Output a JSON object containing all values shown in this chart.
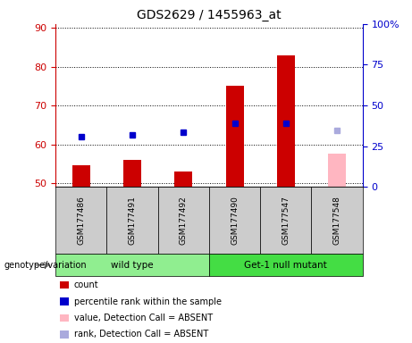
{
  "title": "GDS2629 / 1455963_at",
  "samples": [
    "GSM177486",
    "GSM177491",
    "GSM177492",
    "GSM177490",
    "GSM177547",
    "GSM177548"
  ],
  "count_values": [
    54.5,
    56.0,
    53.0,
    75.0,
    83.0,
    null
  ],
  "count_absent_values": [
    null,
    null,
    null,
    null,
    null,
    57.5
  ],
  "rank_values": [
    62.0,
    62.5,
    63.0,
    65.5,
    65.5,
    null
  ],
  "rank_absent_values": [
    null,
    null,
    null,
    null,
    null,
    63.5
  ],
  "ylim_left": [
    49,
    91
  ],
  "ylim_right": [
    0,
    100
  ],
  "yticks_left": [
    50,
    60,
    70,
    80,
    90
  ],
  "yticks_right": [
    0,
    25,
    50,
    75,
    100
  ],
  "ytick_labels_right": [
    "0",
    "25",
    "50",
    "75",
    "100%"
  ],
  "bar_width": 0.35,
  "count_color": "#cc0000",
  "count_absent_color": "#ffb6c1",
  "rank_color": "#0000cc",
  "rank_absent_color": "#aaaadd",
  "plot_bg": "#ffffff",
  "label_area_bg": "#cccccc",
  "wt_color": "#90ee90",
  "mut_color": "#44dd44",
  "legend_items": [
    {
      "label": "count",
      "color": "#cc0000"
    },
    {
      "label": "percentile rank within the sample",
      "color": "#0000cc"
    },
    {
      "label": "value, Detection Call = ABSENT",
      "color": "#ffb6c1"
    },
    {
      "label": "rank, Detection Call = ABSENT",
      "color": "#aaaadd"
    }
  ]
}
